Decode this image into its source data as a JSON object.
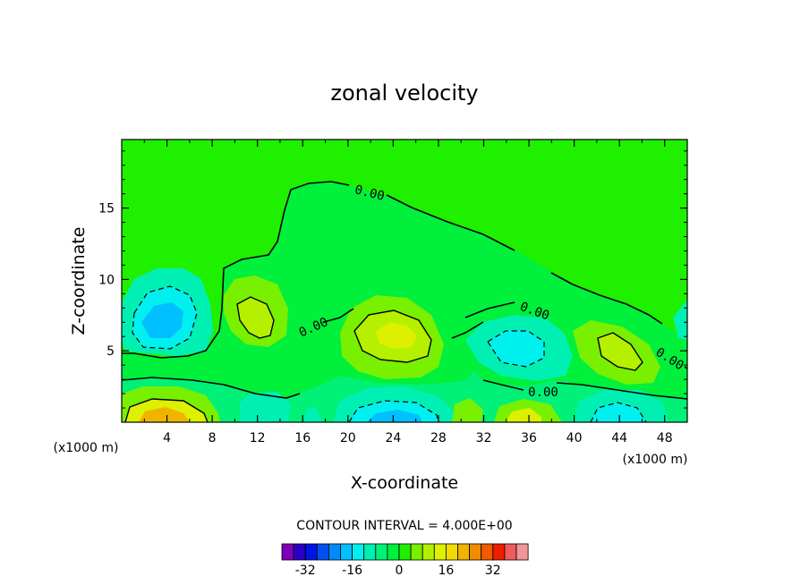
{
  "chart_data": {
    "type": "contour",
    "title": "zonal velocity",
    "xlabel": "X-coordinate",
    "ylabel": "Z-coordinate",
    "x_unit": "(x1000 m)",
    "xlim": [
      0,
      50
    ],
    "ylim": [
      0,
      19.8
    ],
    "x_ticks": [
      4,
      8,
      12,
      16,
      20,
      24,
      28,
      32,
      36,
      40,
      44,
      48
    ],
    "y_ticks": [
      5,
      10,
      15
    ],
    "contour_interval": "CONTOUR INTERVAL =  4.000E+00",
    "contour_labels": [
      "0.00",
      "0.00",
      "0.00",
      "0.00",
      "0.00"
    ],
    "features": [
      {
        "kind": "min",
        "x": 3.3,
        "z": 7.0,
        "level": -12
      },
      {
        "kind": "max",
        "x": 11.7,
        "z": 7.5,
        "level": 12
      },
      {
        "kind": "max",
        "x": 24.5,
        "z": 6.5,
        "level": 16
      },
      {
        "kind": "min",
        "x": 36.5,
        "z": 6.0,
        "level": -8
      },
      {
        "kind": "max",
        "x": 43.5,
        "z": 5.0,
        "level": 12
      },
      {
        "kind": "min",
        "x": 4.0,
        "z": 3.5,
        "level": -4
      },
      {
        "kind": "max",
        "x": 3.5,
        "z": 0.4,
        "level": 24
      },
      {
        "kind": "min",
        "x": 23.5,
        "z": 0.5,
        "level": -16
      },
      {
        "kind": "max",
        "x": 35.0,
        "z": 0.5,
        "level": 16
      },
      {
        "kind": "min",
        "x": 44.0,
        "z": 0.8,
        "level": -12
      }
    ],
    "colorbar": {
      "tick_labels": [
        "-32",
        "-16",
        "0",
        "16",
        "32"
      ],
      "colors": [
        "#7F00B8",
        "#2A00C8",
        "#0014E6",
        "#0050F0",
        "#008CF8",
        "#00C0FF",
        "#00F0F0",
        "#00F0B4",
        "#00F078",
        "#00F03C",
        "#1EF000",
        "#78F000",
        "#B4F000",
        "#DCF000",
        "#F0DC00",
        "#F0B400",
        "#F08C00",
        "#F05A00",
        "#F01E00",
        "#F05A5A",
        "#F09696"
      ]
    }
  }
}
